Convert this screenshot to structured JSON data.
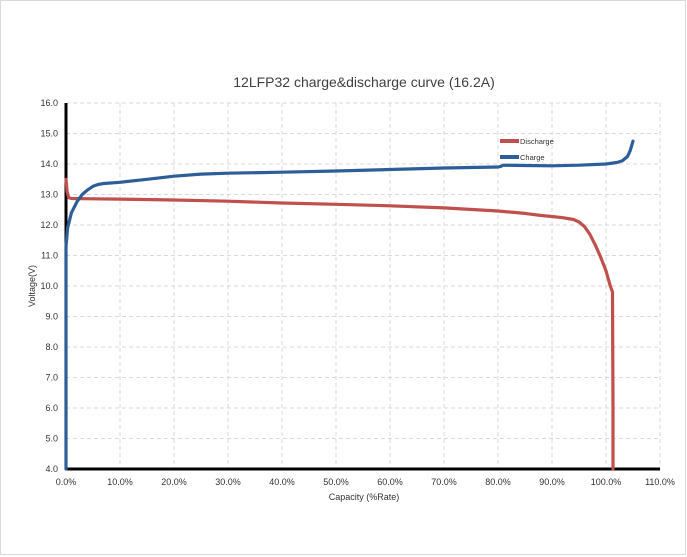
{
  "chart_data": {
    "type": "line",
    "title": "12LFP32 charge&discharge curve (16.2A)",
    "xlabel": "Capacity (%Rate)",
    "ylabel": "Voltage(V)",
    "xlim": [
      0,
      110
    ],
    "ylim": [
      4.0,
      16.0
    ],
    "x_ticks": [
      0,
      10,
      20,
      30,
      40,
      50,
      60,
      70,
      80,
      90,
      100,
      110
    ],
    "x_tick_labels": [
      "0.0%",
      "10.0%",
      "20.0%",
      "30.0%",
      "40.0%",
      "50.0%",
      "60.0%",
      "70.0%",
      "80.0%",
      "90.0%",
      "100.0%",
      "110.0%"
    ],
    "y_ticks": [
      4,
      5,
      6,
      7,
      8,
      9,
      10,
      11,
      12,
      13,
      14,
      15,
      16
    ],
    "y_tick_labels": [
      "4.0",
      "5.0",
      "6.0",
      "7.0",
      "8.0",
      "9.0",
      "10.0",
      "11.0",
      "12.0",
      "13.0",
      "14.0",
      "15.0",
      "16.0"
    ],
    "grid": true,
    "legend_position": "top-right",
    "series": [
      {
        "name": "Discharge",
        "color": "#c0504d",
        "x": [
          0,
          0.2,
          0.5,
          1,
          5,
          10,
          20,
          30,
          40,
          50,
          60,
          70,
          80,
          85,
          88,
          90,
          92,
          94,
          95,
          96,
          97,
          98,
          99,
          100,
          100.8,
          101.2,
          101.3,
          101.3
        ],
        "y": [
          13.5,
          13.1,
          12.9,
          12.87,
          12.86,
          12.85,
          12.82,
          12.78,
          12.72,
          12.68,
          12.63,
          12.56,
          12.46,
          12.38,
          12.31,
          12.28,
          12.24,
          12.18,
          12.1,
          11.95,
          11.7,
          11.35,
          10.95,
          10.5,
          10.0,
          9.8,
          6.0,
          4.0
        ]
      },
      {
        "name": "Charge",
        "color": "#2e5e99",
        "x": [
          0,
          0,
          0.3,
          1,
          2,
          3,
          4,
          5,
          6,
          7,
          10,
          15,
          20,
          25,
          30,
          40,
          50,
          60,
          70,
          80,
          80.5,
          81,
          85,
          90,
          95,
          100,
          102,
          103,
          104,
          104.5,
          105
        ],
        "y": [
          4.0,
          11.3,
          11.9,
          12.4,
          12.75,
          13.0,
          13.15,
          13.27,
          13.33,
          13.36,
          13.4,
          13.5,
          13.6,
          13.67,
          13.7,
          13.73,
          13.77,
          13.82,
          13.87,
          13.9,
          13.92,
          13.96,
          13.95,
          13.94,
          13.96,
          14.0,
          14.05,
          14.1,
          14.25,
          14.45,
          14.75
        ]
      }
    ]
  }
}
